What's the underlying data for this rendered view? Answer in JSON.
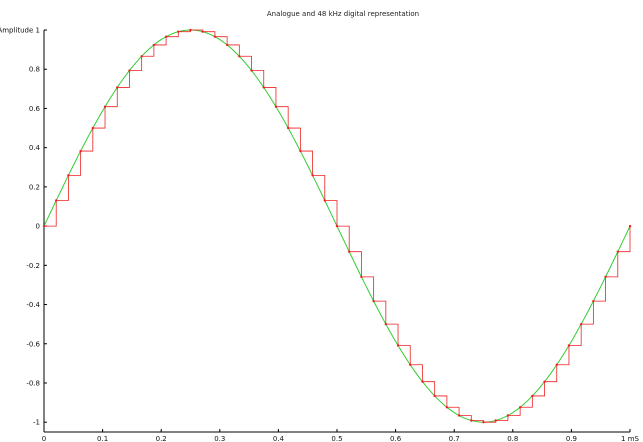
{
  "chart_data": {
    "type": "line",
    "title": "Analogue and 48 kHz digital representation",
    "ylabel": "Amplitude",
    "xlabel": "ms",
    "xlim": [
      0,
      1
    ],
    "ylim": [
      -1.05,
      1.0
    ],
    "grid": false,
    "x_ticks": [
      0,
      0.1,
      0.2,
      0.3,
      0.4,
      0.5,
      0.6,
      0.7,
      0.8,
      0.9,
      1
    ],
    "x_tick_labels": [
      "0",
      "0.1",
      "0.2",
      "0.3",
      "0.4",
      "0.5",
      "0.6",
      "0.7",
      "0.8",
      "0.9",
      "1 mS"
    ],
    "y_ticks": [
      1,
      0.8,
      0.6,
      0.4,
      0.2,
      0,
      -0.2,
      -0.4,
      -0.6,
      -0.8,
      -1
    ],
    "y_tick_labels": [
      "Amplitude 1",
      "0.8",
      "0.6",
      "0.4",
      "0.2",
      "0",
      "-0.2",
      "-0.4",
      "-0.6",
      "-0.8",
      "-1"
    ],
    "series": [
      {
        "kind": "analogue",
        "color": "#33cc33",
        "function": "sin",
        "frequency_khz": 1,
        "points": 200
      },
      {
        "kind": "sampled-staircase",
        "color": "#ee2222",
        "sample_rate_khz": 48,
        "samples": [
          0,
          0.1305,
          0.2588,
          0.3827,
          0.5,
          0.6088,
          0.7071,
          0.7934,
          0.866,
          0.9239,
          0.9659,
          0.9914,
          1,
          0.9914,
          0.9659,
          0.9239,
          0.866,
          0.7934,
          0.7071,
          0.6088,
          0.5,
          0.3827,
          0.2588,
          0.1305,
          0,
          -0.1305,
          -0.2588,
          -0.3827,
          -0.5,
          -0.6088,
          -0.7071,
          -0.7934,
          -0.866,
          -0.9239,
          -0.9659,
          -0.9914,
          -1,
          -0.9914,
          -0.9659,
          -0.9239,
          -0.866,
          -0.7934,
          -0.7071,
          -0.6088,
          -0.5,
          -0.3827,
          -0.2588,
          -0.1305,
          0
        ]
      }
    ]
  }
}
